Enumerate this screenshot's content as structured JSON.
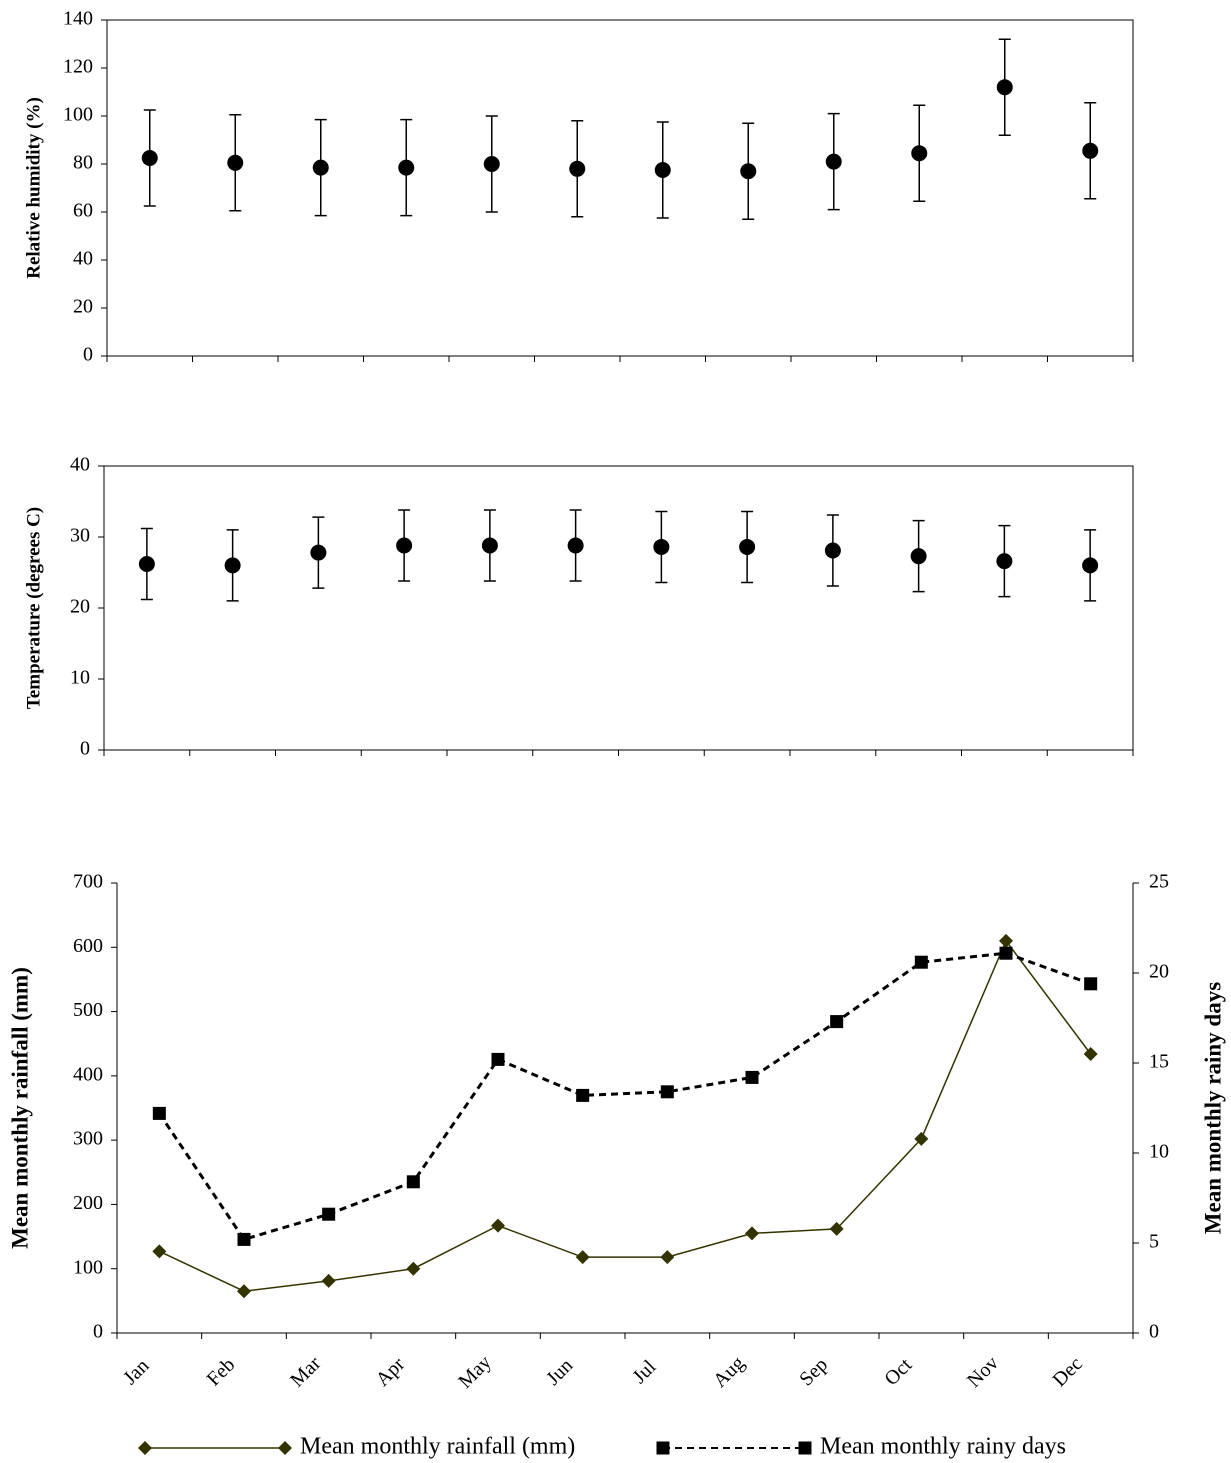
{
  "chart_data": [
    {
      "type": "errorbar",
      "y_label": "Relative humidity (%)",
      "values": [
        82.5,
        80.5,
        78.5,
        78.5,
        80,
        78,
        77.5,
        77,
        81,
        84.5,
        112,
        85.5
      ],
      "errors": [
        20,
        20,
        20,
        20,
        20,
        20,
        20,
        20,
        20,
        20,
        20,
        20
      ],
      "color": "#000000",
      "ylim": [
        0,
        140
      ],
      "yticks": [
        0,
        20,
        40,
        60,
        80,
        100,
        120,
        140
      ]
    },
    {
      "type": "errorbar",
      "y_label": "Temperature (degrees C)",
      "values": [
        26.2,
        26,
        27.8,
        28.8,
        28.8,
        28.8,
        28.6,
        28.6,
        28.1,
        27.3,
        26.6,
        26
      ],
      "errors": [
        5,
        5,
        5,
        5,
        5,
        5,
        5,
        5,
        5,
        5,
        5,
        5
      ],
      "color": "#000000",
      "ylim": [
        0,
        40
      ],
      "yticks": [
        0,
        10,
        20,
        30,
        40
      ]
    },
    {
      "type": "line",
      "y_label": "Mean monthly rainfall (mm)",
      "y2_label": "Mean monthly rainy days",
      "categories": [
        "Jan",
        "Feb",
        "Mar",
        "Apr",
        "May",
        "Jun",
        "Jul",
        "Aug",
        "Sep",
        "Oct",
        "Nov",
        "Dec"
      ],
      "series": [
        {
          "name": "Mean monthly rainfall (mm)",
          "color": "#333300",
          "marker": "diamond",
          "line_style": "solid",
          "values": [
            127,
            65,
            81,
            100,
            167,
            118,
            118,
            155,
            162,
            302,
            610,
            434
          ]
        },
        {
          "name": "Mean monthly rainy days",
          "color": "#000000",
          "marker": "square",
          "line_style": "dashed",
          "axis": "y2",
          "values": [
            12.2,
            5.2,
            6.6,
            8.4,
            15.2,
            13.2,
            13.4,
            14.2,
            17.3,
            20.6,
            21.1,
            19.4
          ]
        }
      ],
      "ylim": [
        0,
        700
      ],
      "yticks": [
        0,
        100,
        200,
        300,
        400,
        500,
        600,
        700
      ],
      "y2lim": [
        0,
        25
      ],
      "y2ticks": [
        0,
        5,
        10,
        15,
        20,
        25
      ],
      "legend": "bottom"
    }
  ]
}
